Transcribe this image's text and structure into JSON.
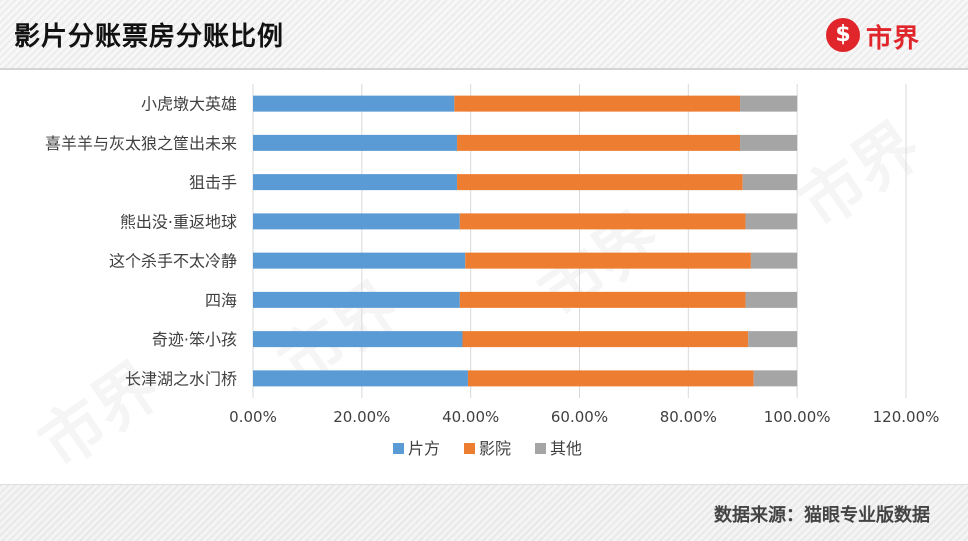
{
  "page_title": "影片分账票房分账比例",
  "logo": {
    "mark": "$",
    "text": "市界"
  },
  "watermark": "市界",
  "source": "数据来源：猫眼专业版数据",
  "colors": {
    "series1": "#5b9bd5",
    "series2": "#ed7d31",
    "series3": "#a5a5a5",
    "grid": "#d9d9d9",
    "text": "#404040"
  },
  "chart_data": {
    "type": "bar",
    "orientation": "horizontal",
    "stacked": true,
    "title": "",
    "categories": [
      "小虎墩大英雄",
      "喜羊羊与灰太狼之筐出未来",
      "狙击手",
      "熊出没·重返地球",
      "这个杀手不太冷静",
      "四海",
      "奇迹·笨小孩",
      "长津湖之水门桥"
    ],
    "series": [
      {
        "name": "片方",
        "values": [
          37.0,
          37.5,
          37.5,
          38.0,
          39.0,
          38.0,
          38.5,
          39.5
        ]
      },
      {
        "name": "影院",
        "values": [
          52.5,
          52.0,
          52.5,
          52.5,
          52.5,
          52.5,
          52.5,
          52.5
        ]
      },
      {
        "name": "其他",
        "values": [
          10.5,
          10.5,
          10.0,
          9.5,
          8.5,
          9.5,
          9.0,
          8.0
        ]
      }
    ],
    "xlim": [
      0,
      120
    ],
    "xticks": [
      "0.00%",
      "20.00%",
      "40.00%",
      "60.00%",
      "80.00%",
      "100.00%",
      "120.00%"
    ],
    "legend_position": "bottom",
    "grid": true
  }
}
